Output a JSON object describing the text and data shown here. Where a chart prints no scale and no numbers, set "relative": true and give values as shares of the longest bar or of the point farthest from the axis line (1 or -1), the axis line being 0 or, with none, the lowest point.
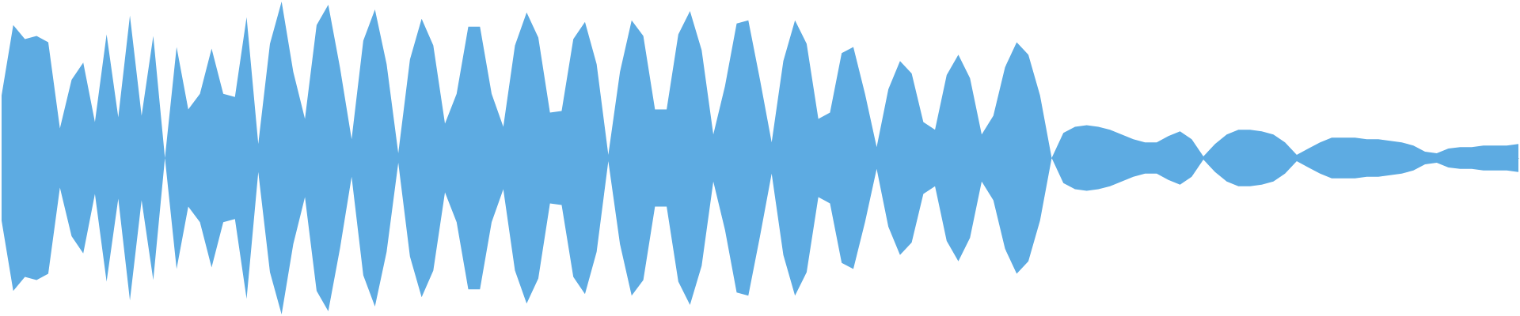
{
  "chart_data": {
    "type": "area",
    "relative": true,
    "categories": [
      null,
      null,
      null,
      null,
      null,
      null,
      null,
      null,
      null,
      null,
      null,
      null,
      null,
      null,
      null,
      null,
      null,
      null,
      null,
      null,
      null,
      null,
      null,
      null,
      null,
      null,
      null,
      null,
      null,
      null,
      null,
      null,
      null,
      null,
      null,
      null,
      null,
      null,
      null,
      null,
      null,
      null,
      null,
      null,
      null,
      null,
      null,
      null,
      null,
      null,
      null,
      null,
      null,
      null,
      null,
      null,
      null,
      null,
      null,
      null,
      null,
      null,
      null,
      null,
      null,
      null,
      null,
      null,
      null,
      null,
      null,
      null,
      null,
      null,
      null,
      null,
      null,
      null,
      null,
      null,
      null,
      null,
      null,
      null,
      null,
      null,
      null,
      null,
      null,
      null,
      null,
      null,
      null,
      null,
      null,
      null,
      null,
      null,
      null,
      null,
      null,
      null,
      null,
      null,
      null,
      null,
      null,
      null,
      null,
      null,
      null,
      null,
      null,
      null,
      null,
      null,
      null,
      null,
      null,
      null,
      null,
      null,
      null,
      null,
      null,
      null,
      null,
      null,
      null,
      null,
      null
    ],
    "series": [
      {
        "color": "#5dabe2",
        "values": [
          0.4,
          0.85,
          0.76,
          0.78,
          0.74,
          0.19,
          0.5,
          0.61,
          0.23,
          0.79,
          0.26,
          0.91,
          0.27,
          0.78,
          0,
          0.71,
          0.31,
          0.41,
          0.7,
          0.41,
          0.39,
          0.9,
          0.09,
          0.73,
          1,
          0.55,
          0.25,
          0.85,
          0.98,
          0.58,
          0.12,
          0.75,
          0.95,
          0.6,
          0.03,
          0.63,
          0.89,
          0.72,
          0.22,
          0.41,
          0.84,
          0.84,
          0.41,
          0.2,
          0.72,
          0.93,
          0.77,
          0.29,
          0.3,
          0.76,
          0.87,
          0.6,
          0.02,
          0.55,
          0.88,
          0.78,
          0.31,
          0.31,
          0.79,
          0.94,
          0.69,
          0.15,
          0.46,
          0.86,
          0.88,
          0.5,
          0.1,
          0.62,
          0.88,
          0.73,
          0.25,
          0.29,
          0.67,
          0.71,
          0.41,
          0.07,
          0.44,
          0.62,
          0.54,
          0.23,
          0.18,
          0.53,
          0.66,
          0.51,
          0.15,
          0.27,
          0.58,
          0.74,
          0.66,
          0.4,
          0,
          0.16,
          0.2,
          0.21,
          0.2,
          0.18,
          0.15,
          0.12,
          0.1,
          0.1,
          0.14,
          0.17,
          0.12,
          0.01,
          0.09,
          0.15,
          0.18,
          0.18,
          0.17,
          0.15,
          0.1,
          0.02,
          0.06,
          0.1,
          0.13,
          0.13,
          0.13,
          0.12,
          0.12,
          0.11,
          0.1,
          0.08,
          0.04,
          0.03,
          0.06,
          0.07,
          0.07,
          0.08,
          0.08,
          0.08,
          0.09
        ]
      },
      {
        "color": "#5dabe2",
        "values": [
          -0.4,
          -0.85,
          -0.76,
          -0.78,
          -0.74,
          -0.19,
          -0.5,
          -0.61,
          -0.23,
          -0.79,
          -0.26,
          -0.91,
          -0.27,
          -0.78,
          0,
          -0.71,
          -0.31,
          -0.41,
          -0.7,
          -0.41,
          -0.39,
          -0.9,
          -0.09,
          -0.73,
          -1,
          -0.55,
          -0.25,
          -0.85,
          -0.98,
          -0.58,
          -0.12,
          -0.75,
          -0.95,
          -0.6,
          -0.03,
          -0.63,
          -0.89,
          -0.72,
          -0.22,
          -0.41,
          -0.84,
          -0.84,
          -0.41,
          -0.2,
          -0.72,
          -0.93,
          -0.77,
          -0.29,
          -0.3,
          -0.76,
          -0.87,
          -0.6,
          -0.02,
          -0.55,
          -0.88,
          -0.78,
          -0.31,
          -0.31,
          -0.79,
          -0.94,
          -0.69,
          -0.15,
          -0.46,
          -0.86,
          -0.88,
          -0.5,
          -0.1,
          -0.62,
          -0.88,
          -0.73,
          -0.25,
          -0.29,
          -0.67,
          -0.71,
          -0.41,
          -0.07,
          -0.44,
          -0.62,
          -0.54,
          -0.23,
          -0.18,
          -0.53,
          -0.66,
          -0.51,
          -0.15,
          -0.27,
          -0.58,
          -0.74,
          -0.66,
          -0.4,
          0,
          -0.16,
          -0.2,
          -0.21,
          -0.2,
          -0.18,
          -0.15,
          -0.12,
          -0.1,
          -0.1,
          -0.14,
          -0.17,
          -0.12,
          -0.01,
          -0.09,
          -0.15,
          -0.18,
          -0.18,
          -0.17,
          -0.15,
          -0.1,
          -0.02,
          -0.06,
          -0.1,
          -0.13,
          -0.13,
          -0.13,
          -0.12,
          -0.12,
          -0.11,
          -0.1,
          -0.08,
          -0.04,
          -0.03,
          -0.06,
          -0.07,
          -0.07,
          -0.08,
          -0.08,
          -0.08,
          -0.09
        ]
      }
    ]
  }
}
